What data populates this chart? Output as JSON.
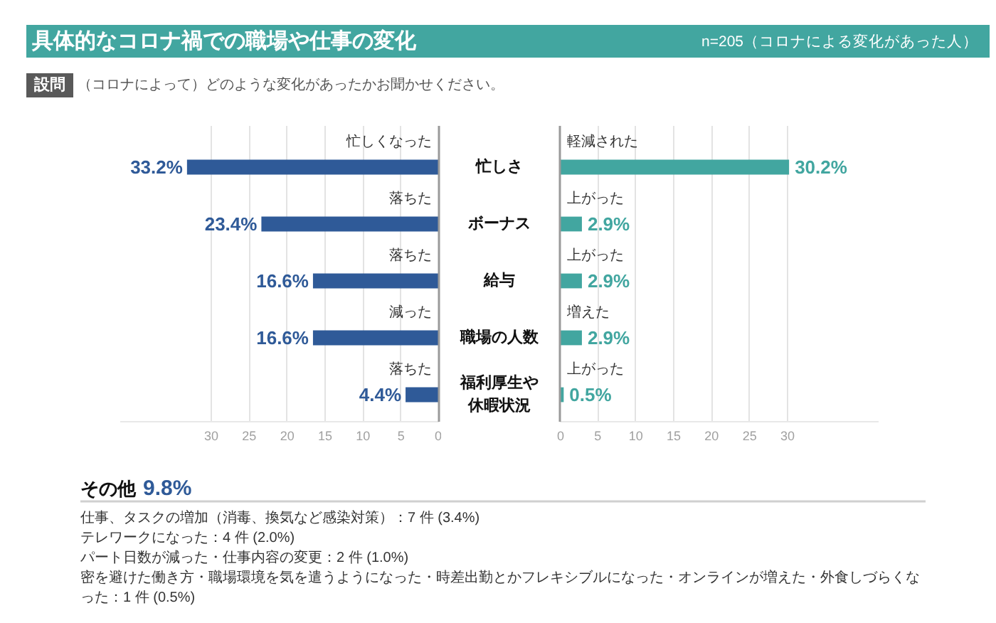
{
  "chart_data": [
    {
      "type": "bar",
      "orientation": "horizontal",
      "title": "具体的なコロナ禍での職場や仕事の変化",
      "categories": [
        "忙しさ",
        "ボーナス",
        "給与",
        "職場の人数",
        "福利厚生や休暇状況"
      ],
      "values": [
        33.2,
        23.4,
        16.6,
        16.6,
        4.4
      ],
      "value_labels": [
        "33.2%",
        "23.4%",
        "16.6%",
        "16.6%",
        "4.4%"
      ],
      "color": "#2f5a98",
      "xlim": [
        42,
        0
      ],
      "xticks": [
        30,
        25,
        20,
        15,
        10,
        5,
        0
      ],
      "grid": "x",
      "annotations": [
        "忙しくなった",
        "落ちた",
        "落ちた",
        "減った",
        "落ちた",
        "設問",
        "（コロナによって）どのような変化があったかお聞かせください。"
      ]
    },
    {
      "type": "bar",
      "orientation": "horizontal",
      "subtitle": "n=205（コロナによる変化があった人）",
      "categories": [
        "忙しさ",
        "ボーナス",
        "給与",
        "職場の人数",
        "福利厚生や休暇状況"
      ],
      "values": [
        30.2,
        2.9,
        2.9,
        2.9,
        0.5
      ],
      "value_labels": [
        "30.2%",
        "2.9%",
        "2.9%",
        "2.9%",
        "0.5%"
      ],
      "color": "#42a6a0",
      "xlim": [
        0,
        42
      ],
      "xticks": [
        0,
        5,
        10,
        15,
        20,
        25,
        30
      ],
      "grid": "x",
      "tick_labels": "x",
      "annotations": [
        "軽減された",
        "上がった",
        "上がった",
        "増えた",
        "上がった",
        "その他",
        "9.8%",
        "仕事、タスクの増加（消毒、換気など感染対策）：7 件 (3.4%)",
        "テレワークになった：4 件 (2.0%)",
        "パート日数が減った・仕事内容の変更：2 件 (1.0%)",
        "密を避けた働き方・職場環境を気を遣うようになった・時差出勤とかフレキシブルになった・オンラインが増えた・外食しづらくなった：1 件 (0.5%)"
      ]
    }
  ]
}
